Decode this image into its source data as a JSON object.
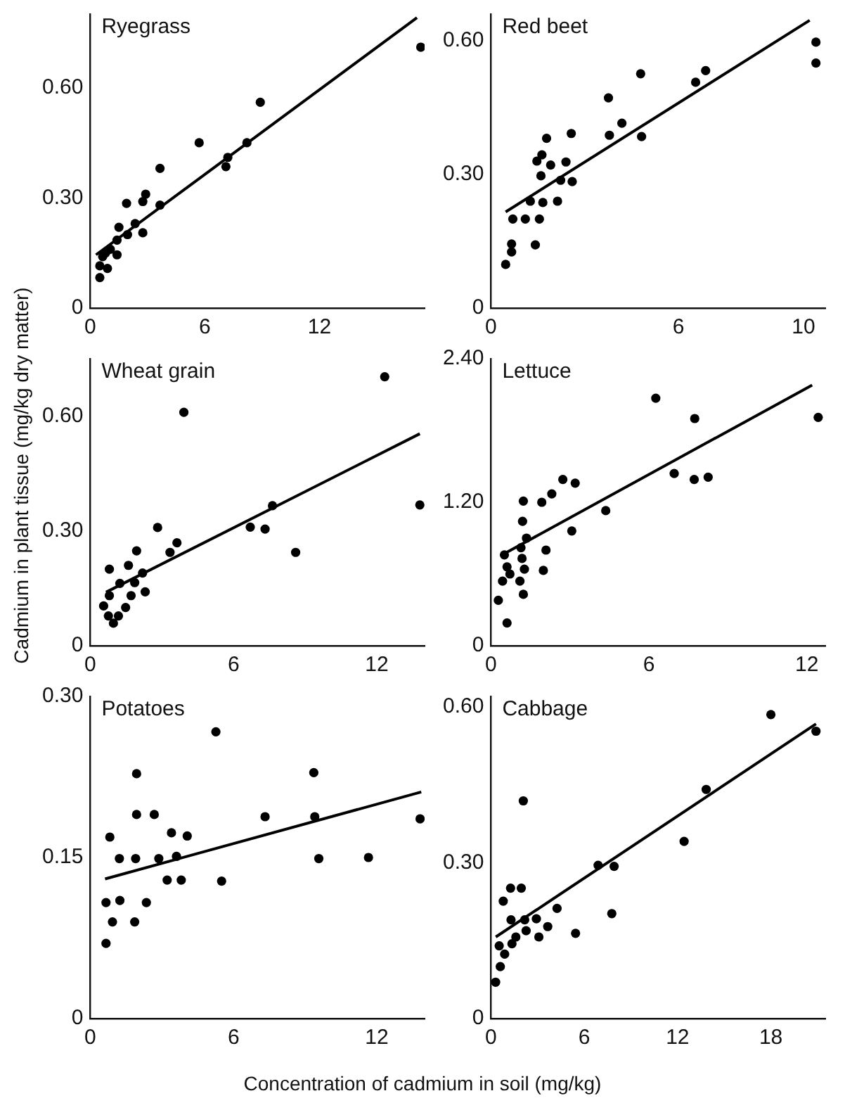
{
  "chart_data": [
    {
      "type": "scatter",
      "title": "Ryegrass",
      "xlim": [
        0,
        17.5
      ],
      "xticks": [
        0,
        6,
        12
      ],
      "ylim": [
        0,
        0.8
      ],
      "yticks": [
        {
          "value": 0,
          "label": "0"
        },
        {
          "value": 0.3,
          "label": "0.30"
        },
        {
          "value": 0.6,
          "label": "0.60"
        }
      ],
      "marker": "circle",
      "series": [
        {
          "color": "#000000",
          "x": [
            0.5,
            0.5,
            0.65,
            0.9,
            0.8,
            1.05,
            1.4,
            1.4,
            1.5,
            1.95,
            1.9,
            2.35,
            2.75,
            2.75,
            2.9,
            3.65,
            3.65,
            5.7,
            7.1,
            7.2,
            8.2,
            8.9,
            17.3
          ],
          "values": [
            0.083,
            0.115,
            0.14,
            0.108,
            0.15,
            0.16,
            0.145,
            0.185,
            0.22,
            0.2,
            0.285,
            0.23,
            0.205,
            0.29,
            0.31,
            0.38,
            0.28,
            0.45,
            0.385,
            0.41,
            0.45,
            0.56,
            0.71
          ]
        },
        {
          "type": "line",
          "color": "#000000",
          "marker": "none",
          "x": [
            0.3,
            17.1
          ],
          "values": [
            0.145,
            0.79
          ]
        }
      ]
    },
    {
      "type": "scatter",
      "title": "Red beet",
      "xlim": [
        0,
        10.7
      ],
      "xticks": [
        0,
        6,
        10
      ],
      "ylim": [
        0,
        0.66
      ],
      "yticks": [
        {
          "value": 0,
          "label": "0"
        },
        {
          "value": 0.3,
          "label": "0.30"
        },
        {
          "value": 0.6,
          "label": "0.60"
        }
      ],
      "marker": "circle",
      "series": [
        {
          "color": "#000000",
          "x": [
            0.47,
            0.66,
            0.66,
            0.7,
            1.1,
            1.26,
            1.42,
            1.47,
            1.55,
            1.6,
            1.63,
            1.66,
            1.78,
            1.91,
            2.13,
            2.23,
            2.4,
            2.57,
            2.6,
            3.76,
            3.79,
            4.19,
            4.79,
            4.82,
            6.55,
            6.87,
            10.4,
            10.4
          ],
          "values": [
            0.098,
            0.126,
            0.144,
            0.2,
            0.2,
            0.24,
            0.142,
            0.33,
            0.2,
            0.297,
            0.344,
            0.237,
            0.381,
            0.321,
            0.24,
            0.287,
            0.328,
            0.392,
            0.284,
            0.472,
            0.388,
            0.415,
            0.526,
            0.385,
            0.507,
            0.533,
            0.597,
            0.55
          ]
        },
        {
          "type": "line",
          "color": "#000000",
          "marker": "none",
          "x": [
            0.47,
            10.2
          ],
          "values": [
            0.216,
            0.646
          ]
        }
      ]
    },
    {
      "type": "scatter",
      "title": "Wheat grain",
      "ylabel": "Cadmium in plant tissue (mg/kg dry matter)",
      "xlim": [
        0,
        14
      ],
      "xticks": [
        0,
        6,
        12
      ],
      "ylim": [
        0,
        0.75
      ],
      "yticks": [
        {
          "value": 0,
          "label": "0"
        },
        {
          "value": 0.3,
          "label": "0.30"
        },
        {
          "value": 0.6,
          "label": "0.60"
        }
      ],
      "marker": "circle",
      "series": [
        {
          "color": "#000000",
          "x": [
            0.56,
            0.76,
            0.97,
            1.18,
            1.48,
            0.8,
            0.8,
            1.24,
            1.6,
            1.71,
            1.86,
            1.94,
            2.19,
            2.3,
            2.82,
            3.34,
            3.63,
            3.92,
            6.7,
            7.32,
            7.63,
            8.6,
            12.33,
            13.8
          ],
          "values": [
            0.104,
            0.078,
            0.059,
            0.078,
            0.1,
            0.2,
            0.131,
            0.163,
            0.21,
            0.131,
            0.165,
            0.248,
            0.19,
            0.141,
            0.309,
            0.244,
            0.269,
            0.61,
            0.31,
            0.305,
            0.366,
            0.244,
            0.703,
            0.368
          ]
        },
        {
          "type": "line",
          "color": "#000000",
          "marker": "none",
          "x": [
            0.66,
            13.8
          ],
          "values": [
            0.14,
            0.554
          ]
        }
      ]
    },
    {
      "type": "scatter",
      "title": "Lettuce",
      "xlim": [
        0,
        12.7
      ],
      "xticks": [
        0,
        6,
        12
      ],
      "ylim": [
        0,
        2.4
      ],
      "yticks": [
        {
          "value": 0,
          "label": "0"
        },
        {
          "value": 1.2,
          "label": "1.20"
        },
        {
          "value": 2.4,
          "label": "2.40"
        }
      ],
      "marker": "circle",
      "series": [
        {
          "color": "#000000",
          "x": [
            0.61,
            0.28,
            0.44,
            0.61,
            0.51,
            0.72,
            1.1,
            1.23,
            1.27,
            1.18,
            1.14,
            1.35,
            1.2,
            1.23,
            1.99,
            2.09,
            1.93,
            2.31,
            3.07,
            2.73,
            3.2,
            4.36,
            6.26,
            6.96,
            7.72,
            8.25,
            7.74,
            12.43
          ],
          "values": [
            0.19,
            0.38,
            0.54,
            0.66,
            0.76,
            0.6,
            0.54,
            0.43,
            0.64,
            0.73,
            0.82,
            0.9,
            1.04,
            1.21,
            0.63,
            0.8,
            1.2,
            1.27,
            0.96,
            1.39,
            1.36,
            1.13,
            2.07,
            1.44,
            1.39,
            1.41,
            1.9,
            1.91
          ]
        },
        {
          "type": "line",
          "color": "#000000",
          "marker": "none",
          "x": [
            0.51,
            12.2
          ],
          "values": [
            0.77,
            2.18
          ]
        }
      ]
    },
    {
      "type": "scatter",
      "title": "Potatoes",
      "xlim": [
        0,
        14
      ],
      "xticks": [
        0,
        6,
        12
      ],
      "ylim": [
        0,
        0.3
      ],
      "yticks": [
        {
          "value": 0,
          "label": "0"
        },
        {
          "value": 0.15,
          "label": "0.15"
        },
        {
          "value": 0.3,
          "label": "0.30"
        }
      ],
      "marker": "circle",
      "series": [
        {
          "color": "#000000",
          "x": [
            0.66,
            0.66,
            0.93,
            0.82,
            1.22,
            1.24,
            1.86,
            1.9,
            1.94,
            1.94,
            2.35,
            2.68,
            2.87,
            3.22,
            3.4,
            3.61,
            3.81,
            4.06,
            5.26,
            5.5,
            7.32,
            9.36,
            9.4,
            9.57,
            11.65,
            13.81
          ],
          "values": [
            0.07,
            0.108,
            0.09,
            0.169,
            0.149,
            0.11,
            0.09,
            0.149,
            0.228,
            0.19,
            0.108,
            0.19,
            0.149,
            0.129,
            0.173,
            0.151,
            0.129,
            0.17,
            0.267,
            0.128,
            0.188,
            0.229,
            0.188,
            0.149,
            0.15,
            0.186
          ]
        },
        {
          "type": "line",
          "color": "#000000",
          "marker": "none",
          "x": [
            0.62,
            13.86
          ],
          "values": [
            0.13,
            0.211
          ]
        }
      ]
    },
    {
      "type": "scatter",
      "title": "Cabbage",
      "xlabel": "Concentration of cadmium in soil (mg/kg)",
      "xlim": [
        0,
        21.5
      ],
      "xticks": [
        0,
        6,
        12,
        18
      ],
      "ylim": [
        0,
        0.62
      ],
      "yticks": [
        {
          "value": 0,
          "label": "0"
        },
        {
          "value": 0.3,
          "label": "0.30"
        },
        {
          "value": 0.6,
          "label": "0.60"
        }
      ],
      "marker": "circle",
      "series": [
        {
          "color": "#000000",
          "x": [
            0.3,
            0.6,
            0.53,
            0.88,
            0.79,
            1.26,
            1.95,
            2.08,
            1.29,
            1.35,
            1.6,
            2.17,
            2.26,
            2.92,
            3.08,
            3.65,
            4.25,
            5.44,
            6.89,
            7.77,
            7.92,
            12.42,
            13.84,
            18.0,
            20.9
          ],
          "values": [
            0.07,
            0.1,
            0.14,
            0.124,
            0.226,
            0.251,
            0.251,
            0.419,
            0.19,
            0.144,
            0.157,
            0.19,
            0.169,
            0.192,
            0.157,
            0.177,
            0.212,
            0.164,
            0.295,
            0.202,
            0.293,
            0.341,
            0.441,
            0.585,
            0.553
          ]
        },
        {
          "type": "line",
          "color": "#000000",
          "marker": "none",
          "x": [
            0.31,
            20.9
          ],
          "values": [
            0.157,
            0.567
          ]
        }
      ]
    }
  ]
}
